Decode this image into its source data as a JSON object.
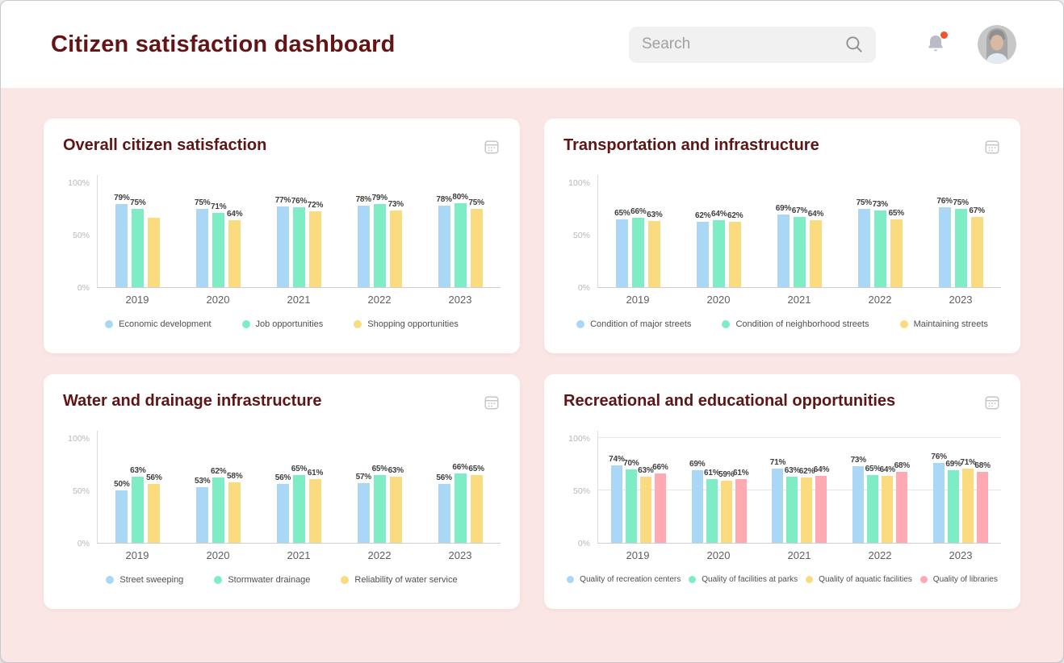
{
  "header": {
    "title": "Citizen satisfaction dashboard",
    "search": {
      "placeholder": "Search"
    },
    "icons": {
      "search": "search-icon",
      "notifications": "bell-icon",
      "calendar": "calendar-icon"
    },
    "notification_dot_color": "#F4512C"
  },
  "theme": {
    "page_bg": "#FBE6E6",
    "header_bg": "#FFFFFF",
    "card_bg": "#FFFFFF",
    "title_color": "#641414",
    "card_title_color": "#5E1515",
    "series_blue": "#A9D7F5",
    "series_green": "#7EEDC6",
    "series_yellow": "#FADB80",
    "series_pink": "#FFA9B2"
  },
  "chart_data": [
    {
      "type": "bar",
      "title": "Overall citizen satisfaction",
      "categories": [
        "2019",
        "2020",
        "2021",
        "2022",
        "2023"
      ],
      "ylim": [
        0,
        100
      ],
      "yticks": [
        {
          "label": "0%",
          "value": 0
        },
        {
          "label": "50%",
          "value": 50
        },
        {
          "label": "100%",
          "value": 100
        }
      ],
      "grid": false,
      "legend_position": "bottom",
      "series": [
        {
          "name": "Economic development",
          "color": "#A9D7F5",
          "values": [
            79,
            75,
            77,
            78,
            78
          ],
          "labels": [
            "79%",
            "75%",
            "77%",
            "78%",
            "78%"
          ]
        },
        {
          "name": "Job opportunities",
          "color": "#7EEDC6",
          "values": [
            75,
            71,
            76,
            79,
            80
          ],
          "labels": [
            "75%",
            "71%",
            "76%",
            "79%",
            "80%"
          ]
        },
        {
          "name": "Shopping opportunities",
          "color": "#FADB80",
          "values": [
            66,
            64,
            72,
            73,
            75
          ],
          "labels": [
            "",
            "64%",
            "72%",
            "73%",
            "75%"
          ]
        }
      ]
    },
    {
      "type": "bar",
      "title": "Transportation and infrastructure",
      "categories": [
        "2019",
        "2020",
        "2021",
        "2022",
        "2023"
      ],
      "ylim": [
        0,
        100
      ],
      "yticks": [
        {
          "label": "0%",
          "value": 0
        },
        {
          "label": "50%",
          "value": 50
        },
        {
          "label": "100%",
          "value": 100
        }
      ],
      "grid": false,
      "legend_position": "bottom",
      "series": [
        {
          "name": "Condition of major streets",
          "color": "#A9D7F5",
          "values": [
            65,
            62,
            69,
            75,
            76
          ],
          "labels": [
            "65%",
            "62%",
            "69%",
            "75%",
            "76%"
          ]
        },
        {
          "name": "Condition of neighborhood streets",
          "color": "#7EEDC6",
          "values": [
            66,
            64,
            67,
            73,
            75
          ],
          "labels": [
            "66%",
            "64%",
            "67%",
            "73%",
            "75%"
          ]
        },
        {
          "name": "Maintaining streets",
          "color": "#FADB80",
          "values": [
            63,
            62,
            64,
            65,
            67
          ],
          "labels": [
            "63%",
            "62%",
            "64%",
            "65%",
            "67%"
          ]
        }
      ]
    },
    {
      "type": "bar",
      "title": "Water and drainage infrastructure",
      "categories": [
        "2019",
        "2020",
        "2021",
        "2022",
        "2023"
      ],
      "ylim": [
        0,
        100
      ],
      "yticks": [
        {
          "label": "0%",
          "value": 0
        },
        {
          "label": "50%",
          "value": 50
        },
        {
          "label": "100%",
          "value": 100
        }
      ],
      "grid": false,
      "legend_position": "bottom",
      "series": [
        {
          "name": "Street sweeping",
          "color": "#A9D7F5",
          "values": [
            50,
            53,
            56,
            57,
            56
          ],
          "labels": [
            "50%",
            "53%",
            "56%",
            "57%",
            "56%"
          ]
        },
        {
          "name": "Stormwater drainage",
          "color": "#7EEDC6",
          "values": [
            63,
            62,
            65,
            65,
            66
          ],
          "labels": [
            "63%",
            "62%",
            "65%",
            "65%",
            "66%"
          ]
        },
        {
          "name": "Reliability of water service",
          "color": "#FADB80",
          "values": [
            56,
            58,
            61,
            63,
            65
          ],
          "labels": [
            "56%",
            "58%",
            "61%",
            "63%",
            "65%"
          ]
        }
      ]
    },
    {
      "type": "bar",
      "title": "Recreational and educational opportunities",
      "categories": [
        "2019",
        "2020",
        "2021",
        "2022",
        "2023"
      ],
      "ylim": [
        0,
        100
      ],
      "yticks": [
        {
          "label": "0%",
          "value": 0
        },
        {
          "label": "50%",
          "value": 50
        },
        {
          "label": "100%",
          "value": 100
        }
      ],
      "grid": true,
      "legend_position": "bottom",
      "series": [
        {
          "name": "Quality of recreation centers",
          "color": "#A9D7F5",
          "values": [
            74,
            69,
            71,
            73,
            76
          ],
          "labels": [
            "74%",
            "69%",
            "71%",
            "73%",
            "76%"
          ]
        },
        {
          "name": "Quality of facilities at parks",
          "color": "#7EEDC6",
          "values": [
            70,
            61,
            63,
            65,
            69
          ],
          "labels": [
            "70%",
            "61%",
            "63%",
            "65%",
            "69%"
          ]
        },
        {
          "name": "Quality of aquatic facilities",
          "color": "#FADB80",
          "values": [
            63,
            59,
            62,
            64,
            71
          ],
          "labels": [
            "63%",
            "59%",
            "62%",
            "64%",
            "71%"
          ]
        },
        {
          "name": "Quality of libraries",
          "color": "#FFA9B2",
          "values": [
            66,
            61,
            64,
            68,
            68
          ],
          "labels": [
            "66%",
            "61%",
            "64%",
            "68%",
            "68%"
          ]
        }
      ]
    }
  ]
}
